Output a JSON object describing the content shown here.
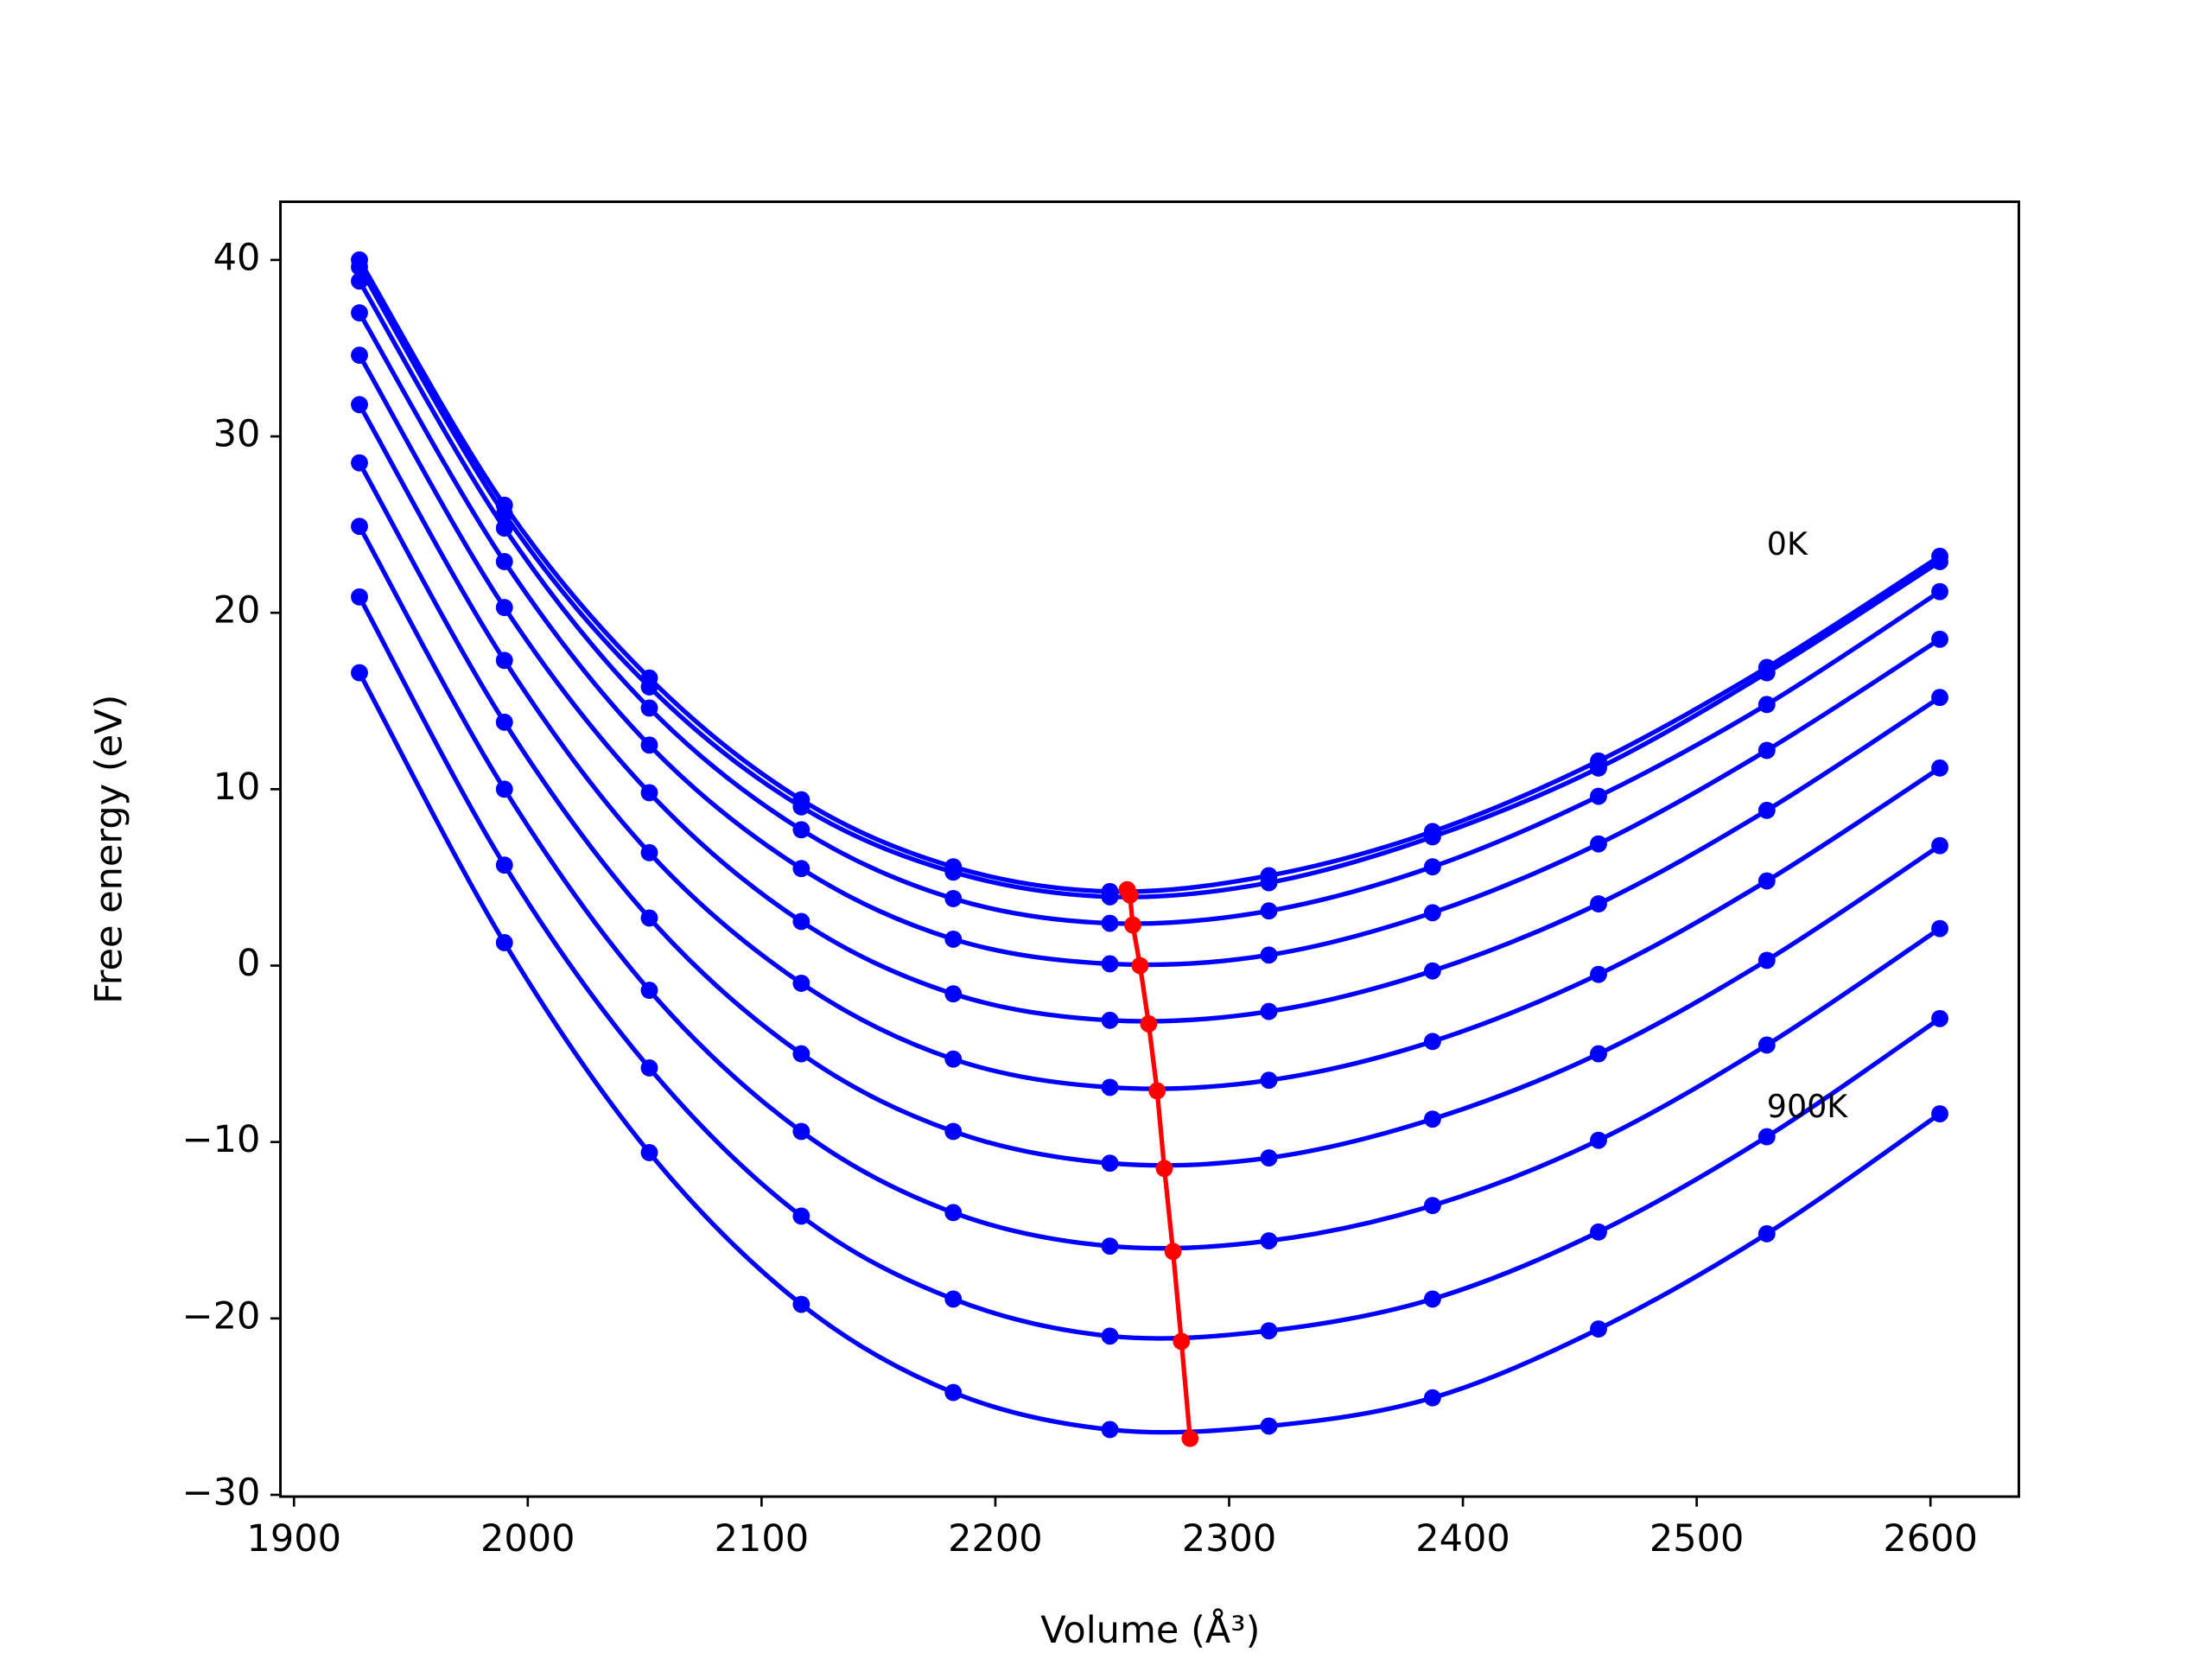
{
  "chart_data": {
    "type": "line",
    "xlabel": "Volume (Å³)",
    "ylabel": "Free energy (eV)",
    "x": [
      1928,
      1990,
      2052,
      2117,
      2182,
      2249,
      2317,
      2387,
      2458,
      2530,
      2604
    ],
    "series": [
      {
        "color": "#0000ff",
        "values": [
          40.0,
          26.1,
          16.3,
          9.4,
          5.6,
          4.2,
          5.1,
          7.6,
          11.6,
          16.9,
          23.2
        ]
      },
      {
        "color": "#0000ff",
        "values": [
          39.6,
          25.6,
          15.8,
          9.0,
          5.3,
          3.9,
          4.7,
          7.3,
          11.2,
          16.6,
          22.9
        ]
      },
      {
        "color": "#0000ff",
        "values": [
          38.8,
          24.8,
          14.6,
          7.7,
          3.8,
          2.4,
          3.1,
          5.6,
          9.6,
          14.8,
          21.2
        ]
      },
      {
        "color": "#0000ff",
        "values": [
          37.0,
          22.9,
          12.5,
          5.5,
          1.5,
          0.1,
          0.6,
          3.0,
          6.9,
          12.2,
          18.5
        ]
      },
      {
        "color": "#0000ff",
        "values": [
          34.6,
          20.3,
          9.8,
          2.5,
          -1.6,
          -3.1,
          -2.6,
          -0.3,
          3.5,
          8.8,
          15.2
        ]
      },
      {
        "color": "#0000ff",
        "values": [
          31.8,
          17.3,
          6.4,
          -1.0,
          -5.3,
          -6.9,
          -6.5,
          -4.3,
          -0.5,
          4.8,
          11.2
        ]
      },
      {
        "color": "#0000ff",
        "values": [
          28.5,
          13.8,
          2.7,
          -5.0,
          -9.4,
          -11.2,
          -10.9,
          -8.7,
          -5.0,
          0.3,
          6.8
        ]
      },
      {
        "color": "#0000ff",
        "values": [
          24.9,
          10.0,
          -1.4,
          -9.4,
          -14.0,
          -15.9,
          -15.6,
          -13.6,
          -9.9,
          -4.5,
          2.1
        ]
      },
      {
        "color": "#0000ff",
        "values": [
          20.9,
          5.7,
          -5.8,
          -14.2,
          -18.9,
          -21.0,
          -20.7,
          -18.9,
          -15.1,
          -9.7,
          -3.0
        ]
      },
      {
        "color": "#0000ff",
        "values": [
          16.6,
          1.3,
          -10.6,
          -19.2,
          -24.2,
          -26.3,
          -26.1,
          -24.5,
          -20.6,
          -15.2,
          -8.4
        ]
      },
      {
        "color": "#ff0000",
        "x": [
          2256.4,
          2257.6,
          2258.8,
          2261.9,
          2265.6,
          2269.2,
          2272.3,
          2276.0,
          2279.6,
          2283.3
        ],
        "values": [
          4.3,
          4.0,
          2.3,
          0.0,
          -3.3,
          -7.1,
          -11.5,
          -16.2,
          -21.3,
          -26.8
        ]
      }
    ],
    "annotations": [
      {
        "text": "0K",
        "x": 2530,
        "y": 23.3
      },
      {
        "text": "900K",
        "x": 2530,
        "y": -8.6
      }
    ],
    "xlim": [
      1894.2,
      2637.8
    ],
    "ylim": [
      -30.1,
      43.3
    ],
    "xticks": [
      1900,
      2000,
      2100,
      2200,
      2300,
      2400,
      2500,
      2600
    ],
    "yticks": [
      {
        "value": -30,
        "label": "−30"
      },
      {
        "value": -20,
        "label": "−20"
      },
      {
        "value": -10,
        "label": "−10"
      },
      0,
      10,
      20,
      30,
      40
    ],
    "grid": false
  }
}
